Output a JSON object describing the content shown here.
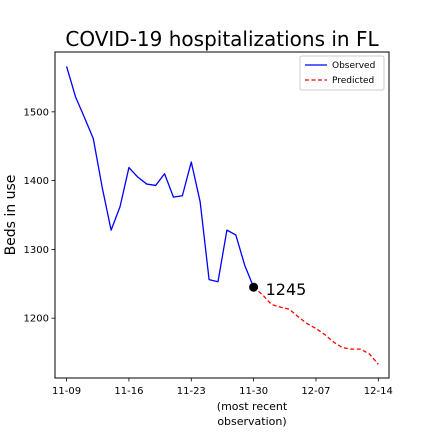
{
  "chart_data": {
    "type": "line",
    "title": "COVID-19 hospitalizations in FL",
    "xlabel": "",
    "xlabel_note_line1": "(most recent",
    "xlabel_note_line2": "observation)",
    "ylabel": "Beds in use",
    "x_ticks": [
      "11-09",
      "11-16",
      "11-23",
      "11-30",
      "12-07",
      "12-14"
    ],
    "y_ticks": [
      1200,
      1300,
      1400,
      1500
    ],
    "xlim_days": [
      -1.3,
      36.2
    ],
    "ylim": [
      1113,
      1587
    ],
    "grid": false,
    "legend": "top-right",
    "series": [
      {
        "name": "Observed",
        "color": "#0000ff",
        "style": "solid",
        "x": [
          "11-09",
          "11-10",
          "11-11",
          "11-12",
          "11-13",
          "11-14",
          "11-15",
          "11-16",
          "11-17",
          "11-18",
          "11-19",
          "11-20",
          "11-21",
          "11-22",
          "11-23",
          "11-24",
          "11-25",
          "11-26",
          "11-27",
          "11-28",
          "11-29",
          "11-30"
        ],
        "values": [
          1566,
          1522,
          1492,
          1461,
          1390,
          1328,
          1362,
          1419,
          1405,
          1395,
          1393,
          1410,
          1376,
          1378,
          1427,
          1369,
          1256,
          1253,
          1328,
          1321,
          1277,
          1245
        ]
      },
      {
        "name": "Predicted",
        "color": "#ff0000",
        "style": "dashed",
        "x": [
          "11-30",
          "12-01",
          "12-02",
          "12-03",
          "12-04",
          "12-05",
          "12-06",
          "12-07",
          "12-08",
          "12-09",
          "12-10",
          "12-11",
          "12-12",
          "12-13",
          "12-14"
        ],
        "values": [
          1245,
          1234,
          1220,
          1216,
          1213,
          1202,
          1192,
          1185,
          1176,
          1165,
          1157,
          1155,
          1155,
          1148,
          1133
        ]
      }
    ],
    "highlight": {
      "x": "11-30",
      "value": 1245,
      "label": "1245"
    }
  }
}
